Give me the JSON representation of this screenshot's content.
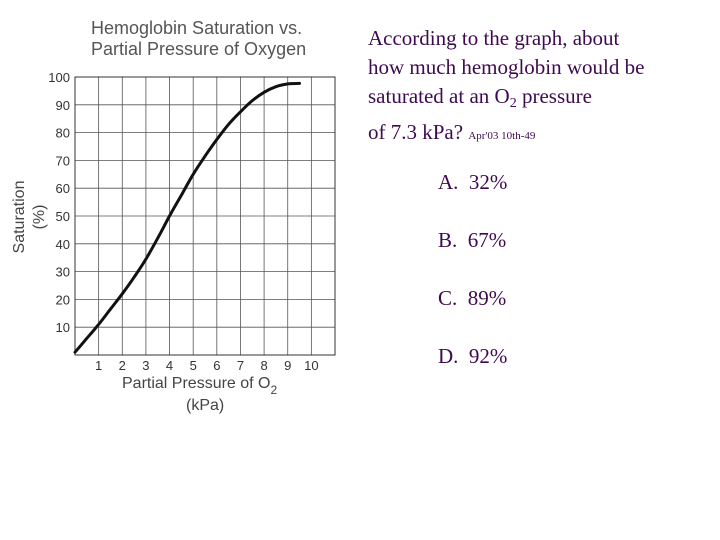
{
  "question": {
    "line1": "According to the graph, about",
    "line2": "how much hemoglobin would be",
    "line3_prefix": "saturated at an O",
    "line3_sub": "2",
    "line3_suffix": " pressure",
    "line4": "of 7.3 kPa? ",
    "source_tag": "Apr'03 10th-49"
  },
  "choices": [
    {
      "letter": "A.",
      "text": "32%"
    },
    {
      "letter": "B.",
      "text": "67%"
    },
    {
      "letter": "C.",
      "text": "89%"
    },
    {
      "letter": "D.",
      "text": "92%"
    }
  ],
  "chart_data": {
    "type": "line",
    "title_lines": [
      "Hemoglobin Saturation vs.",
      "Partial Pressure of Oxygen"
    ],
    "xlabel_main": "Partial Pressure of O",
    "xlabel_sub": "2",
    "xlabel_unit": "(kPa)",
    "ylabel_main": "Saturation",
    "ylabel_unit": "(%)",
    "x_ticks": [
      "1",
      "2",
      "3",
      "4",
      "5",
      "6",
      "7",
      "8",
      "9",
      "10"
    ],
    "y_ticks": [
      "10",
      "20",
      "30",
      "40",
      "50",
      "60",
      "70",
      "80",
      "90",
      "100"
    ],
    "xlim": [
      0,
      11
    ],
    "ylim": [
      0,
      100
    ],
    "grid": true,
    "series": [
      {
        "x": [
          0,
          0.5,
          1,
          1.5,
          2,
          2.5,
          3,
          3.5,
          4,
          4.5,
          5,
          5.5,
          6,
          6.5,
          7,
          7.5,
          8,
          8.5,
          9,
          9.5
        ],
        "y": [
          1,
          6,
          11,
          16.5,
          22,
          28,
          34.5,
          42,
          50,
          57.5,
          65,
          71.5,
          77.5,
          83,
          87.5,
          91.5,
          94.5,
          96.5,
          97.5,
          97.7
        ]
      }
    ],
    "colors": {
      "line": "#111111",
      "grid": "#555555"
    }
  }
}
